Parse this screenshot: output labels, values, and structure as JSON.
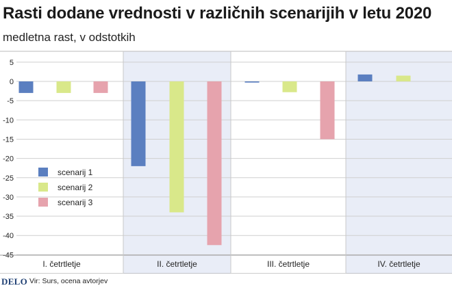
{
  "chart_data": {
    "type": "bar",
    "title": "Rasti dodane vrednosti v različnih scenarijih v letu 2020",
    "subtitle": "medletna rast, v odstotkih",
    "categories": [
      "I. četrtletje",
      "II. četrtletje",
      "III. četrtletje",
      "IV. četrtletje"
    ],
    "series": [
      {
        "name": "scenarij 1",
        "color": "#5b7fc0",
        "values": [
          -3,
          -22,
          -0.3,
          1.8
        ]
      },
      {
        "name": "scenarij 2",
        "color": "#d9e88a",
        "values": [
          -3,
          -34,
          -2.8,
          1.5
        ]
      },
      {
        "name": "scenarij 3",
        "color": "#e6a3ad",
        "values": [
          -3,
          -42.5,
          -15,
          0
        ]
      }
    ],
    "ylim": [
      -45,
      5
    ],
    "yticks": [
      5,
      0,
      -5,
      -10,
      -15,
      -20,
      -25,
      -30,
      -35,
      -40,
      -45
    ],
    "grid": true,
    "legend_position": "left"
  },
  "footer": {
    "logo": "DELO",
    "source": "Vir: Surs, ocena avtorjev"
  },
  "colors": {
    "shaded_band": "#e9edf7",
    "grid": "#cfcfcf"
  }
}
